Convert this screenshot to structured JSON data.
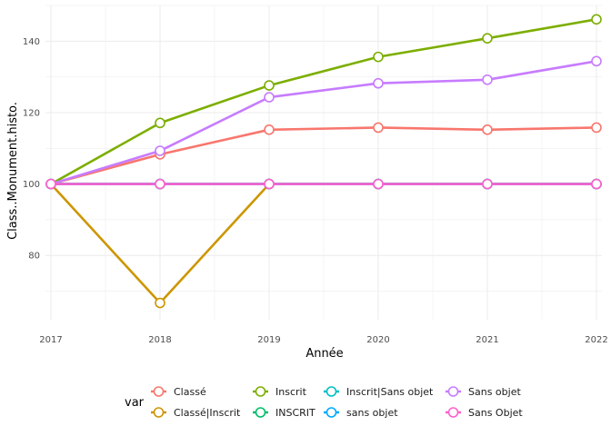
{
  "chart_data": {
    "type": "line",
    "xlabel": "Année",
    "ylabel": "Class..Monument.histo.",
    "x": [
      2017,
      2018,
      2019,
      2020,
      2021,
      2022
    ],
    "xlim": [
      2016.95,
      2022.05
    ],
    "ylim": [
      62,
      150
    ],
    "yticks": [
      80,
      100,
      120,
      140
    ],
    "grid": true,
    "legend": {
      "title": "var",
      "position": "bottom",
      "columns": 4
    },
    "series": [
      {
        "name": "Classé",
        "color": "#F8766D",
        "values": [
          100,
          108.3,
          115.2,
          115.8,
          115.2,
          115.8
        ]
      },
      {
        "name": "Classé|Inscrit",
        "color": "#CD9600",
        "values": [
          100,
          66.7,
          100,
          100,
          100,
          100
        ]
      },
      {
        "name": "Inscrit",
        "color": "#7CAE00",
        "values": [
          100,
          117.1,
          127.6,
          135.6,
          140.8,
          146.1
        ]
      },
      {
        "name": "INSCRIT",
        "color": "#00BE67",
        "values": [
          100,
          100,
          100,
          100,
          100,
          100
        ]
      },
      {
        "name": "Inscrit|Sans objet",
        "color": "#00BFC4",
        "values": [
          100,
          100,
          100,
          100,
          100,
          100
        ]
      },
      {
        "name": "sans objet",
        "color": "#00A9FF",
        "values": [
          100,
          100,
          100,
          100,
          100,
          100
        ]
      },
      {
        "name": "Sans objet",
        "color": "#C77CFF",
        "values": [
          100,
          109.3,
          124.3,
          128.2,
          129.2,
          134.4
        ]
      },
      {
        "name": "Sans Objet",
        "color": "#FF61CC",
        "values": [
          100,
          100,
          100,
          100,
          100,
          100
        ]
      }
    ]
  }
}
